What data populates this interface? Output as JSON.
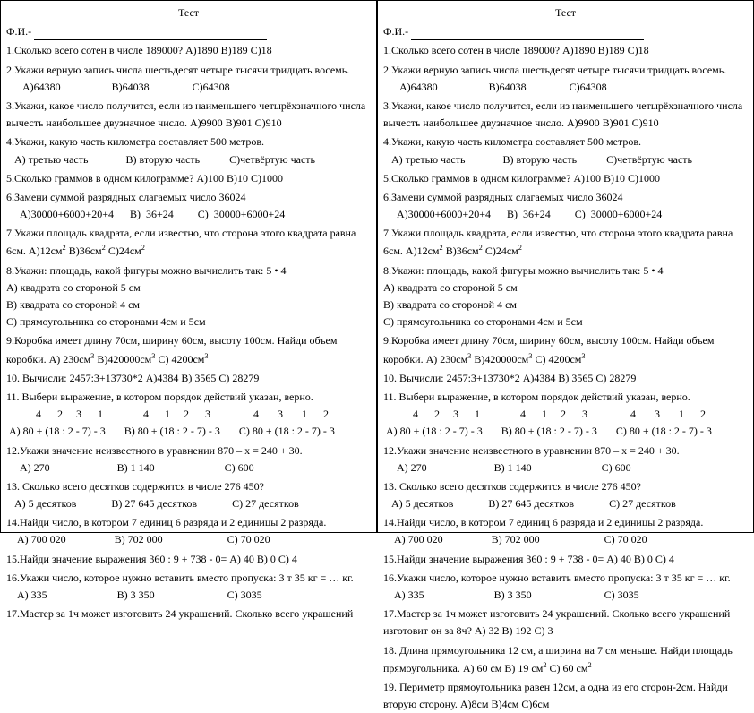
{
  "left": {
    "title": "Тест",
    "fi_label": "Ф.И.-",
    "q1_text": "1.Сколько всего сотен в числе 189000?        А)1890         В)189          С)18",
    "q2_text": "2.Укажи верную запись числа шестьдесят четыре тысячи тридцать восемь.",
    "q2_opts": "      А)64380                   В)64038                С)64308",
    "q3_text": "3.Укажи, какое число получится, если из наименьшего четырёхзначного числа",
    "q3b": "вычесть наибольшее двузначное число.   А)9900      В)901      С)910",
    "q4_text": "4.Укажи, какую часть километра составляет 500 метров.",
    "q4_opts": "   А) третью часть              В) вторую часть           С)четвёртую часть",
    "q5_text": "5.Сколько граммов в одном килограмме?    А)100          В)10         С)1000",
    "q6_text": "6.Замени суммой разрядных слагаемых число 36024",
    "q6_opts": "     А)30000+6000+20+4      В)  36+24         С)  30000+6000+24",
    "q7_text": "7.Укажи площадь квадрата, если известно, что сторона этого квадрата равна",
    "q7b_pre": "6см.                А)12см",
    "q7b_mid": "                            В)36см",
    "q7b_end": "                       С)24см",
    "q8_text": "8.Укажи: площадь, какой фигуры можно вычислить так: 5 • 4",
    "q8a": "   А) квадрата со стороной 5 см",
    "q8b": "   В) квадрата со стороной 4 см",
    "q8c": "   С) прямоугольника со сторонами 4см и 5см",
    "q9_text": "9.Коробка имеет длину 70см, ширину 60см, высоту 100см. Найди объем",
    "q9b_pre": "коробки.          А)  230см",
    "q9b_mid": "          В)420000см",
    "q9b_end": "        С)  4200см",
    "q10_text": "10. Вычисли:    2457:3+13730*2     А)4384        В)  3565       С)  28279",
    "q11_text": "11. Выбери выражение, в котором порядок действий указан, верно.",
    "q11_nums": "           4      2     3      1               4      1     2      3                4       3       1      2",
    "q11_opts": " А) 80 + (18 : 2 - 7) - 3       В) 80 + (18 : 2 - 7) - 3       С) 80 + (18 : 2 - 7) - 3",
    "q12_text": "12.Укажи значение неизвестного в уравнении 870 – х = 240 + 30.",
    "q12_opts": "     А) 270                         В) 1 140                          С) 600",
    "q13_text": "13. Сколько всего десятков содержится в числе 276 450?",
    "q13_opts": "   А) 5 десятков             В) 27 645 десятков             С) 27 десятков",
    "q14_text": "14.Найди число, в котором 7 единиц 6 разряда и 2 единицы 2 разряда.",
    "q14_opts": "    А) 700 020                  В) 702 000                        С) 70 020",
    "q15_text": "15.Найди значение выражения 360 : 9 + 738 - 0=       А) 40         В)  0       С) 4",
    "q16_text": "16.Укажи число, которое нужно вставить вместо пропуска: 3 т 35 кг = … кг.",
    "q16_opts": "    А) 335                          В) 3 350                           С) 3035",
    "q17_text": "17.Мастер  за 1ч может изготовить 24 украшений. Сколько всего украшений"
  },
  "right": {
    "title": "Тест",
    "fi_label": "Ф.И.-",
    "q1_text": "1.Сколько всего сотен в числе 189000?        А)1890         В)189          С)18",
    "q2_text": "2.Укажи верную запись числа шестьдесят четыре тысячи тридцать восемь.",
    "q2_opts": "      А)64380                   В)64038                С)64308",
    "q3_text": "3.Укажи, какое число получится, если из наименьшего четырёхзначного числа",
    "q3b": "вычесть наибольшее двузначное число.   А)9900      В)901      С)910",
    "q4_text": "4.Укажи, какую часть километра составляет 500 метров.",
    "q4_opts": "   А) третью часть              В) вторую часть           С)четвёртую часть",
    "q5_text": "5.Сколько граммов в одном килограмме?    А)100          В)10         С)1000",
    "q6_text": "6.Замени суммой разрядных слагаемых число 36024",
    "q6_opts": "     А)30000+6000+20+4      В)  36+24         С)  30000+6000+24",
    "q7_text": "7.Укажи площадь квадрата, если известно, что сторона этого квадрата равна",
    "q7b_pre": "6см.                А)12см",
    "q7b_mid": "                            В)36см",
    "q7b_end": "                       С)24см",
    "q8_text": "8.Укажи: площадь, какой фигуры можно вычислить так: 5 • 4",
    "q8a": "   А) квадрата со стороной 5 см",
    "q8b": "   В) квадрата со стороной 4 см",
    "q8c": "   С) прямоугольника со сторонами 4см и 5см",
    "q9_text": "9.Коробка имеет длину 70см, ширину 60см, высоту 100см. Найди объем",
    "q9b_pre": "коробки.          А)  230см",
    "q9b_mid": "          В)420000см",
    "q9b_end": "        С)  4200см",
    "q10_text": "10. Вычисли:    2457:3+13730*2     А)4384        В)  3565       С)  28279",
    "q11_text": "11. Выбери выражение, в котором порядок действий указан, верно.",
    "q11_nums": "           4      2     3      1               4      1     2      3                4       3       1      2",
    "q11_opts": " А) 80 + (18 : 2 - 7) - 3       В) 80 + (18 : 2 - 7) - 3       С) 80 + (18 : 2 - 7) - 3",
    "q12_text": "12.Укажи значение неизвестного в уравнении 870 – х = 240 + 30.",
    "q12_opts": "     А) 270                         В) 1 140                          С) 600",
    "q13_text": "13. Сколько всего десятков содержится в числе 276 450?",
    "q13_opts": "   А) 5 десятков             В) 27 645 десятков             С) 27 десятков",
    "q14_text": "14.Найди число, в котором 7 единиц 6 разряда и 2 единицы 2 разряда.",
    "q14_opts": "    А) 700 020                  В) 702 000                        С) 70 020",
    "q15_text": "15.Найди значение выражения 360 : 9 + 738 - 0=       А) 40         В)  0       С) 4",
    "q16_text": "16.Укажи число, которое нужно вставить вместо пропуска: 3 т 35 кг = … кг.",
    "q16_opts": "    А) 335                          В) 3 350                           С) 3035",
    "q17_text": "17.Мастер  за 1ч может изготовить 24 украшений. Сколько всего украшений",
    "q17b": "изготовит он за  8ч?          А) 32                  В) 192                  С) 3",
    "q18_text": "18. Длина прямоугольника 12 см, а ширина на 7 см меньше. Найди площадь",
    "q18b_pre": "прямоугольника.    А) 60 см             В) 19 см",
    "q18b_end": "             С) 60 см",
    "q19_text": "19. Периметр прямоугольника равен 12см, а одна из его сторон-2см. Найди",
    "q19b": "вторую сторону.       А)8см                В)4см                 С)6см"
  }
}
